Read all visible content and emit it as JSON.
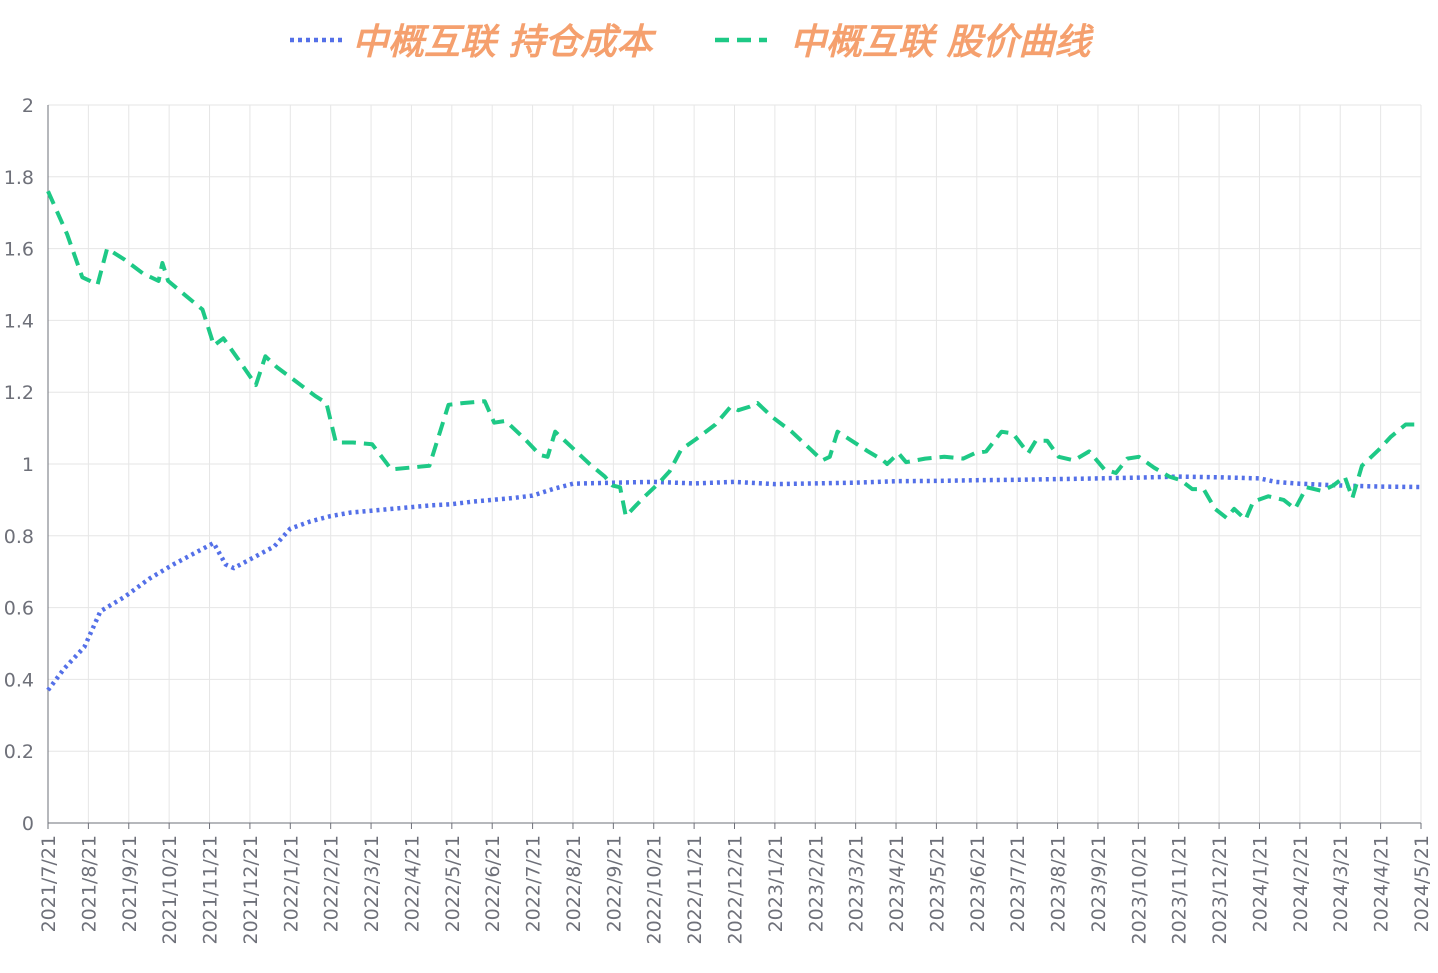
{
  "chart_data": {
    "type": "line",
    "title": "",
    "xlabel": "",
    "ylabel": "",
    "ylim": [
      0,
      2
    ],
    "yticks": [
      0,
      0.2,
      0.4,
      0.6,
      0.8,
      1,
      1.2,
      1.4,
      1.6,
      1.8,
      2
    ],
    "ytick_labels": [
      "0",
      "0.2",
      "0.4",
      "0.6",
      "0.8",
      "1",
      "1.2",
      "1.4",
      "1.6",
      "1.8",
      "2"
    ],
    "categories": [
      "2021/7/21",
      "2021/8/21",
      "2021/9/21",
      "2021/10/21",
      "2021/11/21",
      "2021/12/21",
      "2022/1/21",
      "2022/2/21",
      "2022/3/21",
      "2022/4/21",
      "2022/5/21",
      "2022/6/21",
      "2022/7/21",
      "2022/8/21",
      "2022/9/21",
      "2022/10/21",
      "2022/11/21",
      "2022/12/21",
      "2023/1/21",
      "2023/2/21",
      "2023/3/21",
      "2023/4/21",
      "2023/5/21",
      "2023/6/21",
      "2023/7/21",
      "2023/8/21",
      "2023/9/21",
      "2023/10/21",
      "2023/11/21",
      "2023/12/21",
      "2024/1/21",
      "2024/2/21",
      "2024/3/21",
      "2024/4/21",
      "2024/5/21"
    ],
    "grid": true,
    "legend_position": "top-center",
    "series": [
      {
        "name": "中概互联 持仓成本",
        "color": "#5470e8",
        "style": "dotted",
        "points": [
          [
            0,
            0.37
          ],
          [
            0.4,
            0.43
          ],
          [
            0.9,
            0.49
          ],
          [
            1.3,
            0.59
          ],
          [
            1.9,
            0.63
          ],
          [
            2.5,
            0.68
          ],
          [
            3.1,
            0.72
          ],
          [
            3.6,
            0.75
          ],
          [
            4.1,
            0.78
          ],
          [
            4.4,
            0.72
          ],
          [
            4.6,
            0.71
          ],
          [
            5.1,
            0.74
          ],
          [
            5.6,
            0.77
          ],
          [
            6.0,
            0.82
          ],
          [
            6.5,
            0.84
          ],
          [
            7.0,
            0.855
          ],
          [
            7.5,
            0.865
          ],
          [
            8.0,
            0.87
          ],
          [
            8.5,
            0.875
          ],
          [
            9.0,
            0.88
          ],
          [
            9.5,
            0.885
          ],
          [
            10.0,
            0.888
          ],
          [
            10.5,
            0.895
          ],
          [
            11.0,
            0.9
          ],
          [
            11.5,
            0.905
          ],
          [
            12.0,
            0.912
          ],
          [
            12.5,
            0.93
          ],
          [
            13.0,
            0.945
          ],
          [
            14.0,
            0.948
          ],
          [
            15.0,
            0.95
          ],
          [
            16.0,
            0.946
          ],
          [
            17.0,
            0.95
          ],
          [
            18.0,
            0.944
          ],
          [
            19.0,
            0.946
          ],
          [
            20.0,
            0.948
          ],
          [
            21.0,
            0.952
          ],
          [
            22.0,
            0.953
          ],
          [
            23.0,
            0.955
          ],
          [
            24.0,
            0.956
          ],
          [
            25.0,
            0.958
          ],
          [
            26.0,
            0.96
          ],
          [
            27.0,
            0.962
          ],
          [
            28.0,
            0.965
          ],
          [
            29.0,
            0.963
          ],
          [
            30.0,
            0.96
          ],
          [
            30.4,
            0.95
          ],
          [
            31.0,
            0.945
          ],
          [
            32.0,
            0.94
          ],
          [
            33.0,
            0.937
          ],
          [
            34.0,
            0.936
          ]
        ]
      },
      {
        "name": "中概互联 股价曲线",
        "color": "#1ec986",
        "style": "dashed",
        "points": [
          [
            0,
            1.76
          ],
          [
            0.5,
            1.64
          ],
          [
            0.9,
            1.52
          ],
          [
            1.3,
            1.5
          ],
          [
            1.55,
            1.6
          ],
          [
            2.0,
            1.57
          ],
          [
            2.5,
            1.53
          ],
          [
            2.9,
            1.51
          ],
          [
            3.0,
            1.56
          ],
          [
            3.15,
            1.51
          ],
          [
            3.6,
            1.47
          ],
          [
            4.05,
            1.43
          ],
          [
            4.35,
            1.33
          ],
          [
            4.6,
            1.35
          ],
          [
            5.0,
            1.29
          ],
          [
            5.45,
            1.22
          ],
          [
            5.7,
            1.3
          ],
          [
            6.0,
            1.27
          ],
          [
            6.5,
            1.23
          ],
          [
            7.0,
            1.19
          ],
          [
            7.3,
            1.17
          ],
          [
            7.55,
            1.06
          ],
          [
            8.0,
            1.06
          ],
          [
            8.5,
            1.055
          ],
          [
            9.0,
            0.985
          ],
          [
            9.5,
            0.99
          ],
          [
            10.0,
            0.995
          ],
          [
            10.5,
            1.165
          ],
          [
            10.9,
            1.17
          ],
          [
            11.45,
            1.175
          ],
          [
            11.7,
            1.115
          ],
          [
            12.0,
            1.12
          ],
          [
            12.5,
            1.07
          ],
          [
            12.9,
            1.025
          ],
          [
            13.1,
            1.02
          ],
          [
            13.3,
            1.09
          ],
          [
            13.7,
            1.05
          ],
          [
            14.2,
            1.0
          ],
          [
            14.6,
            0.965
          ],
          [
            14.8,
            0.94
          ],
          [
            15.0,
            0.935
          ],
          [
            15.15,
            0.855
          ],
          [
            15.6,
            0.905
          ],
          [
            16.0,
            0.945
          ],
          [
            16.3,
            0.98
          ],
          [
            16.6,
            1.04
          ],
          [
            17.0,
            1.07
          ],
          [
            17.5,
            1.11
          ],
          [
            17.9,
            1.16
          ],
          [
            18.1,
            1.15
          ],
          [
            18.4,
            1.16
          ],
          [
            18.6,
            1.17
          ],
          [
            19.0,
            1.13
          ],
          [
            19.5,
            1.09
          ],
          [
            20.0,
            1.04
          ],
          [
            20.3,
            1.01
          ],
          [
            20.5,
            1.02
          ],
          [
            20.7,
            1.09
          ],
          [
            21.0,
            1.07
          ],
          [
            21.5,
            1.035
          ],
          [
            21.9,
            1.01
          ],
          [
            22.0,
            1.0
          ],
          [
            22.3,
            1.03
          ],
          [
            22.5,
            1.005
          ],
          [
            23.0,
            1.015
          ],
          [
            23.5,
            1.02
          ],
          [
            24.0,
            1.015
          ],
          [
            24.3,
            1.03
          ],
          [
            24.6,
            1.035
          ],
          [
            25.0,
            1.09
          ],
          [
            25.3,
            1.085
          ],
          [
            25.7,
            1.03
          ],
          [
            25.9,
            1.065
          ],
          [
            26.2,
            1.065
          ],
          [
            26.5,
            1.02
          ],
          [
            26.9,
            1.01
          ],
          [
            27.3,
            1.035
          ],
          [
            27.7,
            0.985
          ],
          [
            28.0,
            0.975
          ],
          [
            28.3,
            1.015
          ],
          [
            28.6,
            1.02
          ],
          [
            29.0,
            0.99
          ],
          [
            29.4,
            0.965
          ],
          [
            29.7,
            0.955
          ],
          [
            30.0,
            0.93
          ],
          [
            30.3,
            0.93
          ],
          [
            30.6,
            0.875
          ],
          [
            30.9,
            0.85
          ],
          [
            31.1,
            0.875
          ],
          [
            31.4,
            0.845
          ],
          [
            31.6,
            0.895
          ],
          [
            32.0,
            0.91
          ],
          [
            32.4,
            0.9
          ],
          [
            32.7,
            0.875
          ],
          [
            33.0,
            0.935
          ],
          [
            33.4,
            0.925
          ],
          [
            33.7,
            0.94
          ],
          [
            34.0,
            0.965
          ],
          [
            34.2,
            0.905
          ],
          [
            34.45,
            0.995
          ],
          [
            34.9,
            1.04
          ],
          [
            35.2,
            1.075
          ],
          [
            35.6,
            1.11
          ],
          [
            36.0,
            1.11
          ]
        ]
      }
    ]
  }
}
